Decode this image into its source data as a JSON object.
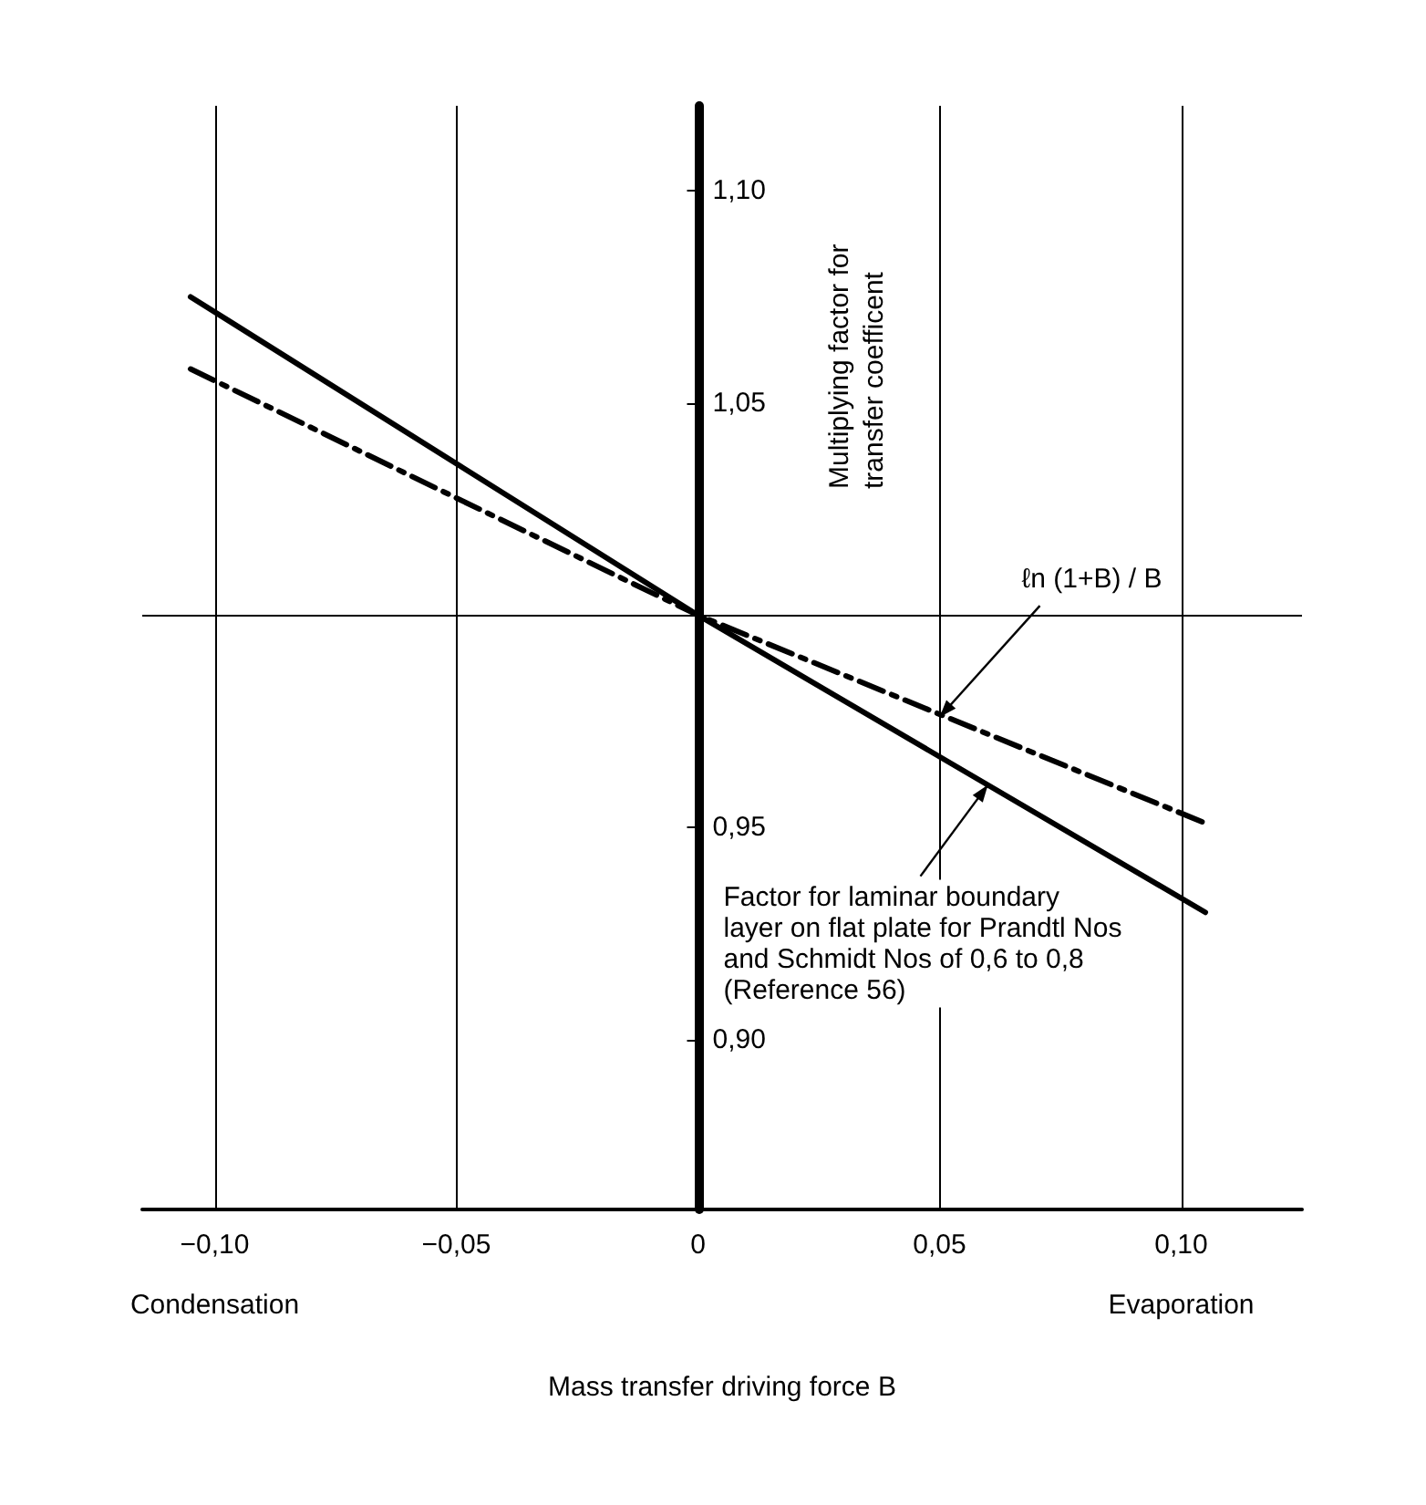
{
  "chart_data": {
    "type": "line",
    "xlabel": "Mass transfer driving force B",
    "ylabel": "Multiplying factor for transfer coefficent",
    "xlim": [
      -0.115,
      0.125
    ],
    "ylim": [
      0.86,
      1.12
    ],
    "xticks": [
      {
        "value": -0.1,
        "label": "−0,10"
      },
      {
        "value": -0.05,
        "label": "−0,05"
      },
      0,
      {
        "value": 0.05,
        "label": "0,05"
      },
      {
        "value": 0.1,
        "label": "0,10"
      }
    ],
    "yticks": [
      {
        "value": 0.9,
        "label": "0,90"
      },
      {
        "value": 0.95,
        "label": "0,95"
      },
      {
        "value": 1.05,
        "label": "1,05"
      },
      {
        "value": 1.1,
        "label": "1,10"
      }
    ],
    "series": [
      {
        "x": [
          -0.105,
          0,
          0.105
        ],
        "values": [
          1.075,
          1.0,
          0.93
        ],
        "color": "#000000",
        "line_style": "solid"
      },
      {
        "x": [
          -0.105,
          0,
          0.105
        ],
        "values": [
          1.058,
          1.0,
          0.951
        ],
        "color": "#000000",
        "line_style": "dashed"
      }
    ],
    "ref_lines": [
      {
        "axis": "x",
        "value": -0.1
      },
      {
        "axis": "x",
        "value": -0.05
      },
      {
        "axis": "x",
        "value": 0.05
      },
      {
        "axis": "x",
        "value": 0.1
      },
      {
        "axis": "y",
        "value": 1.0
      }
    ],
    "annotations": [
      {
        "text": "ℓn (1+B) / B",
        "x": 0.05,
        "y": 0.976
      },
      {
        "text": "Factor for laminar boundary\nlayer on flat plate for Prandtl Nos\nand Schmidt Nos of 0,6 to 0,8\n(Reference 56)",
        "x": 0.06,
        "y": 0.96
      },
      "Condensation",
      "Evaporation"
    ],
    "grid": false,
    "marker": "none"
  }
}
